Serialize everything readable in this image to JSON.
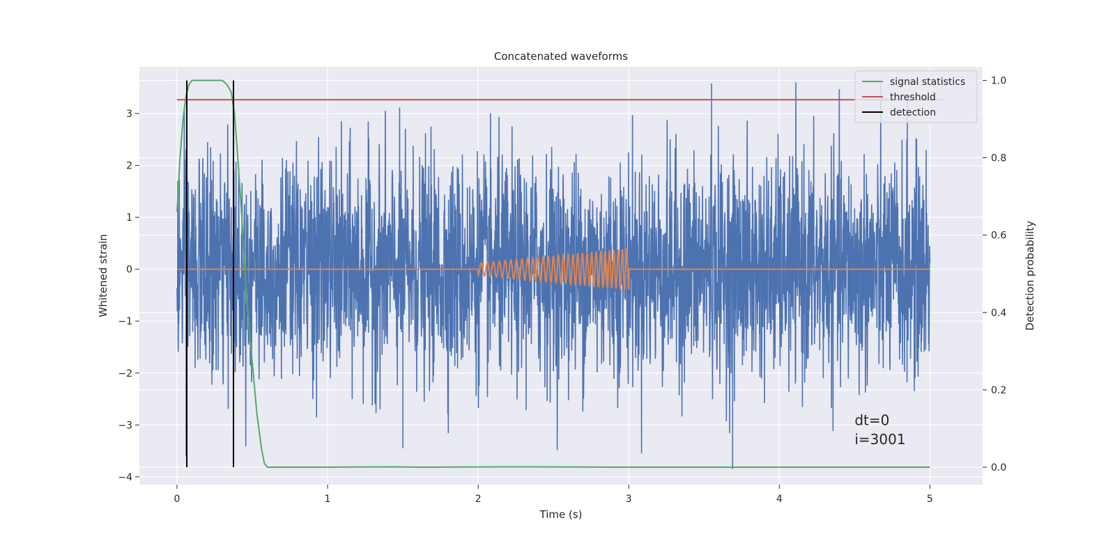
{
  "chart_data": {
    "type": "line",
    "title": "Concatenated waveforms",
    "xlabel": "Time (s)",
    "ylabel": "Whitened strain",
    "y2label": "Detection probability",
    "xlim": [
      -0.25,
      5.35
    ],
    "ylim": [
      -4.15,
      3.9
    ],
    "y2lim": [
      -0.045,
      1.035
    ],
    "xticks": [
      0,
      1,
      2,
      3,
      4,
      5
    ],
    "yticks": [
      -4,
      -3,
      -2,
      -1,
      0,
      1,
      2,
      3
    ],
    "y2ticks": [
      0.0,
      0.2,
      0.4,
      0.6,
      0.8,
      1.0
    ],
    "grid": true,
    "legend_position": "top-right",
    "annotations": [
      "dt=0",
      "i=3001"
    ],
    "series": [
      {
        "name": "",
        "kind": "noise",
        "axis": "left",
        "color": "#4c72b0",
        "x_range": [
          0,
          5
        ],
        "typical_envelope": [
          -2.2,
          2.2
        ],
        "extrema": [
          {
            "x": 0.06,
            "y": -3.6
          },
          {
            "x": 1.5,
            "y": -3.45
          },
          {
            "x": 3.55,
            "y": 3.58
          },
          {
            "x": 3.69,
            "y": -3.85
          },
          {
            "x": 4.85,
            "y": 3.3
          }
        ]
      },
      {
        "name": "",
        "kind": "chirp",
        "axis": "left",
        "color": "#dd8452",
        "x_range": [
          0,
          5
        ],
        "chirp_start": 2.0,
        "chirp_end": 3.0,
        "amplitude_start": 0.12,
        "amplitude_end": 0.4
      },
      {
        "name": "signal statistics",
        "axis": "right",
        "color": "#55a868",
        "x": [
          0,
          0.02,
          0.04,
          0.06,
          0.08,
          0.1,
          0.12,
          0.15,
          0.2,
          0.25,
          0.3,
          0.33,
          0.36,
          0.38,
          0.4,
          0.43,
          0.46,
          0.5,
          0.53,
          0.56,
          0.58,
          0.6,
          0.65,
          1.0,
          1.45,
          1.6,
          2.2,
          3.0,
          4.0,
          5.0
        ],
        "values": [
          0.66,
          0.8,
          0.9,
          0.96,
          0.99,
          1.0,
          1.0,
          1.0,
          1.0,
          1.0,
          1.0,
          0.99,
          0.97,
          0.92,
          0.82,
          0.65,
          0.45,
          0.27,
          0.14,
          0.05,
          0.01,
          0.0,
          0.0,
          0.0,
          0.001,
          0.0,
          0.001,
          0.0,
          0.0,
          0.0
        ]
      },
      {
        "name": "threshold",
        "axis": "right",
        "color": "#c44e52",
        "x": [
          0,
          5.1
        ],
        "values": [
          0.95,
          0.95
        ]
      },
      {
        "name": "detection",
        "axis": "right",
        "color": "#000000",
        "vlines": [
          0.065,
          0.375
        ],
        "y2_range": [
          0.0,
          1.0
        ]
      }
    ]
  }
}
